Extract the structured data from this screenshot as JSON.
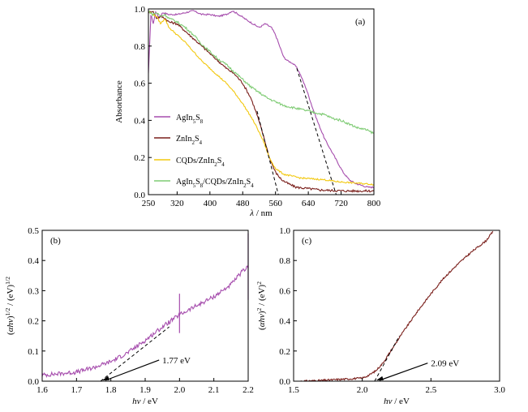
{
  "chart_data": [
    {
      "id": "a",
      "type": "line",
      "panel_label": "(a)",
      "xlabel_symbol": "λ",
      "xlabel_unit": " / nm",
      "ylabel": "Absorbance",
      "xlim": [
        250,
        800
      ],
      "ylim": [
        0,
        1.0
      ],
      "xticks": [
        250,
        320,
        400,
        480,
        560,
        640,
        720,
        800
      ],
      "yticks": [
        0,
        0.2,
        0.4,
        0.6,
        0.8,
        1.0
      ],
      "xtick_labels": [
        "250",
        "320",
        "400",
        "480",
        "560",
        "640",
        "720",
        "800"
      ],
      "ytick_labels": [
        "0.0",
        "0.2",
        "0.4",
        "0.6",
        "0.8",
        "1.0"
      ],
      "legend_position": "left",
      "series": [
        {
          "name": "AgIn5S8",
          "legend_parts": [
            [
              "AgIn",
              ""
            ],
            [
              "5",
              "sub"
            ],
            [
              "S",
              ""
            ],
            [
              "8",
              "sub"
            ]
          ],
          "color": "#a64dad",
          "noise": 0.004,
          "x": [
            250,
            256,
            262,
            268,
            275,
            285,
            300,
            320,
            340,
            360,
            380,
            400,
            420,
            440,
            455,
            470,
            490,
            505,
            520,
            535,
            550,
            560,
            570,
            580,
            590,
            600,
            610,
            620,
            635,
            650,
            665,
            680,
            695,
            710,
            725,
            740,
            755,
            770,
            785,
            800
          ],
          "y": [
            0.65,
            0.97,
            0.92,
            0.99,
            0.95,
            0.98,
            0.97,
            0.97,
            0.98,
            0.99,
            0.97,
            0.97,
            0.96,
            0.97,
            0.99,
            0.97,
            0.94,
            0.92,
            0.9,
            0.92,
            0.9,
            0.86,
            0.8,
            0.74,
            0.72,
            0.71,
            0.69,
            0.65,
            0.57,
            0.47,
            0.38,
            0.3,
            0.24,
            0.18,
            0.12,
            0.08,
            0.06,
            0.05,
            0.04,
            0.04
          ]
        },
        {
          "name": "ZnIn2S4",
          "legend_parts": [
            [
              "ZnIn",
              ""
            ],
            [
              "2",
              "sub"
            ],
            [
              "S",
              ""
            ],
            [
              "4",
              "sub"
            ]
          ],
          "color": "#7a1f1b",
          "noise": 0.006,
          "x": [
            250,
            260,
            270,
            280,
            290,
            300,
            320,
            340,
            360,
            380,
            400,
            420,
            440,
            460,
            480,
            500,
            515,
            530,
            545,
            560,
            575,
            590,
            610,
            630,
            650,
            670,
            700,
            730,
            760,
            800
          ],
          "y": [
            0.98,
            0.99,
            0.95,
            0.96,
            0.95,
            0.93,
            0.92,
            0.88,
            0.84,
            0.8,
            0.76,
            0.72,
            0.68,
            0.65,
            0.6,
            0.52,
            0.43,
            0.32,
            0.2,
            0.12,
            0.08,
            0.06,
            0.04,
            0.035,
            0.03,
            0.025,
            0.022,
            0.02,
            0.02,
            0.02
          ]
        },
        {
          "name": "CQDs/ZnIn2S4",
          "legend_parts": [
            [
              "CQDs/ZnIn",
              ""
            ],
            [
              "2",
              "sub"
            ],
            [
              "S",
              ""
            ],
            [
              "4",
              "sub"
            ]
          ],
          "color": "#f2c80f",
          "noise": 0.004,
          "x": [
            250,
            260,
            270,
            280,
            290,
            300,
            320,
            340,
            360,
            380,
            400,
            420,
            440,
            460,
            480,
            500,
            515,
            530,
            545,
            560,
            580,
            600,
            620,
            650,
            680,
            710,
            740,
            770,
            800
          ],
          "y": [
            0.99,
            0.97,
            0.96,
            0.92,
            0.95,
            0.9,
            0.86,
            0.82,
            0.77,
            0.72,
            0.68,
            0.64,
            0.6,
            0.55,
            0.49,
            0.42,
            0.36,
            0.29,
            0.2,
            0.14,
            0.11,
            0.1,
            0.09,
            0.085,
            0.08,
            0.07,
            0.065,
            0.06,
            0.055
          ]
        },
        {
          "name": "AgIn5S8/CQDs/ZnIn2S4",
          "legend_parts": [
            [
              "AgIn",
              ""
            ],
            [
              "5",
              "sub"
            ],
            [
              "S",
              ""
            ],
            [
              "8",
              "sub"
            ],
            [
              "/CQDs/ZnIn",
              ""
            ],
            [
              "2",
              "sub"
            ],
            [
              "S",
              ""
            ],
            [
              "4",
              "sub"
            ]
          ],
          "color": "#7ecb73",
          "noise": 0.006,
          "x": [
            250,
            260,
            270,
            280,
            290,
            300,
            320,
            340,
            360,
            380,
            400,
            420,
            440,
            460,
            480,
            500,
            520,
            540,
            560,
            580,
            600,
            620,
            640,
            660,
            680,
            700,
            720,
            740,
            760,
            780,
            800
          ],
          "y": [
            0.99,
            0.97,
            0.98,
            0.96,
            0.97,
            0.95,
            0.93,
            0.9,
            0.86,
            0.81,
            0.77,
            0.73,
            0.7,
            0.66,
            0.62,
            0.58,
            0.55,
            0.52,
            0.5,
            0.48,
            0.47,
            0.46,
            0.45,
            0.44,
            0.43,
            0.41,
            0.4,
            0.38,
            0.36,
            0.35,
            0.33
          ]
        }
      ],
      "tangents": [
        {
          "x": [
            515,
            567
          ],
          "y": [
            0.45,
            0.0
          ]
        },
        {
          "x": [
            612,
            708
          ],
          "y": [
            0.68,
            0.0
          ]
        }
      ]
    },
    {
      "id": "b",
      "type": "line",
      "panel_label": "(b)",
      "xlabel_symbol": "hν",
      "xlabel_unit": " / eV",
      "ylabel_parts": [
        [
          "(",
          ""
        ],
        [
          "αhν",
          "i"
        ],
        [
          ")",
          ""
        ],
        [
          "1/2",
          "sup"
        ],
        [
          " / (eV)",
          ""
        ],
        [
          "1/2",
          "sup"
        ]
      ],
      "xlim": [
        1.6,
        2.2
      ],
      "ylim": [
        0,
        0.5
      ],
      "xticks": [
        1.6,
        1.7,
        1.8,
        1.9,
        2.0,
        2.1,
        2.2
      ],
      "yticks": [
        0,
        0.1,
        0.2,
        0.3,
        0.4,
        0.5
      ],
      "xtick_labels": [
        "1.6",
        "1.7",
        "1.8",
        "1.9",
        "2.0",
        "2.1",
        "2.2"
      ],
      "ytick_labels": [
        "0.0",
        "0.1",
        "0.2",
        "0.3",
        "0.4",
        "0.5"
      ],
      "series": [
        {
          "color": "#a64dad",
          "noise": 0.007,
          "x": [
            1.6,
            1.65,
            1.7,
            1.75,
            1.8,
            1.85,
            1.9,
            1.95,
            2.0,
            2.05,
            2.1,
            2.15,
            2.18,
            2.2
          ],
          "y": [
            0.02,
            0.025,
            0.03,
            0.045,
            0.065,
            0.095,
            0.135,
            0.18,
            0.22,
            0.25,
            0.28,
            0.32,
            0.36,
            0.38
          ]
        }
      ],
      "spikes": [
        {
          "x": 2.0,
          "y": 0.29
        },
        {
          "x": 2.2,
          "y": 0.49
        }
      ],
      "tangents": [
        {
          "x": [
            1.77,
            1.97
          ],
          "y": [
            0.0,
            0.18
          ]
        }
      ],
      "annotation": {
        "text": "1.77 eV",
        "x": 1.77,
        "y": 0.0,
        "text_x": 1.95,
        "text_y": 0.07
      }
    },
    {
      "id": "c",
      "type": "line",
      "panel_label": "(c)",
      "xlabel_symbol": "hν",
      "xlabel_unit": " / eV",
      "ylabel_parts": [
        [
          "(",
          ""
        ],
        [
          "αhν",
          "i"
        ],
        [
          ")",
          ""
        ],
        [
          "2",
          "sup"
        ],
        [
          " / (eV)",
          ""
        ],
        [
          "2",
          "sup"
        ]
      ],
      "xlim": [
        1.5,
        3.0
      ],
      "ylim": [
        0,
        1.0
      ],
      "xticks": [
        1.5,
        2.0,
        2.5,
        3.0
      ],
      "yticks": [
        0,
        0.2,
        0.4,
        0.6,
        0.8,
        1.0
      ],
      "xtick_labels": [
        "1.5",
        "2.0",
        "2.5",
        "3.0"
      ],
      "ytick_labels": [
        "0.0",
        "0.2",
        "0.4",
        "0.6",
        "0.8",
        "1.0"
      ],
      "series": [
        {
          "color": "#7a1f1b",
          "noise": 0.006,
          "x": [
            1.55,
            1.7,
            1.8,
            1.9,
            2.0,
            2.05,
            2.1,
            2.15,
            2.2,
            2.3,
            2.4,
            2.5,
            2.6,
            2.7,
            2.8,
            2.9,
            2.95
          ],
          "y": [
            0.0,
            0.005,
            0.01,
            0.015,
            0.02,
            0.04,
            0.07,
            0.12,
            0.19,
            0.33,
            0.46,
            0.58,
            0.69,
            0.78,
            0.86,
            0.93,
            0.99
          ]
        }
      ],
      "tangents": [
        {
          "x": [
            2.09,
            2.27
          ],
          "y": [
            0.0,
            0.3
          ]
        }
      ],
      "annotation": {
        "text": "2.09 eV",
        "x": 2.09,
        "y": 0.0,
        "text_x": 2.5,
        "text_y": 0.12
      }
    }
  ]
}
